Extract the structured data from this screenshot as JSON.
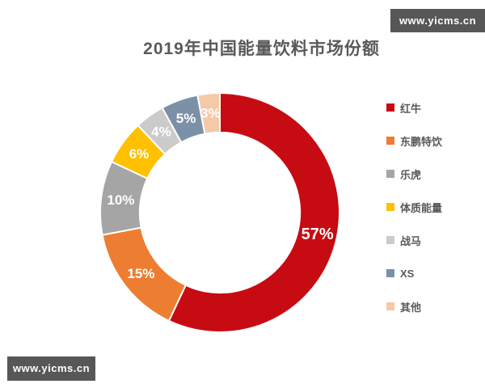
{
  "watermarks": {
    "top_right": "www.yicms.cn",
    "bottom_left": "www.yicms.cn",
    "background": "#575757",
    "text_color": "#ffffff"
  },
  "chart_data": {
    "type": "pie",
    "subtype": "donut",
    "title": "2019年中国能量饮料市场份额",
    "categories": [
      "红牛",
      "东鹏特饮",
      "乐虎",
      "体质能量",
      "战马",
      "XS",
      "其他"
    ],
    "values": [
      57,
      15,
      10,
      6,
      4,
      5,
      3
    ],
    "unit": "%",
    "colors": [
      "#c70b12",
      "#ed7d31",
      "#a5a5a5",
      "#ffc000",
      "#cbcbcb",
      "#7c90a8",
      "#f4c9a8"
    ],
    "start_angle_deg": 0,
    "direction": "clockwise",
    "inner_radius_ratio": 0.67,
    "label_color": "#ffffff",
    "title_color": "#595959",
    "legend_text_color": "#595959",
    "legend_position": "right",
    "grid": false
  }
}
